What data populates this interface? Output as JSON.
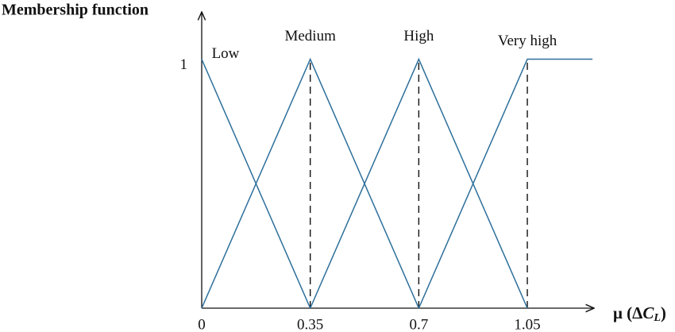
{
  "chart_data": {
    "type": "line",
    "title": "Membership function",
    "x_label": [
      "μ (Δ",
      "C",
      "L",
      ")"
    ],
    "xlim": [
      0,
      1.265
    ],
    "ylim": [
      0,
      1.19
    ],
    "xticks": [
      0,
      0.35,
      0.7,
      1.05
    ],
    "yticks": [
      1
    ],
    "guides": [
      0.35,
      0.7,
      1.05
    ],
    "color": "#2e6f9a",
    "series": [
      {
        "name": "Low",
        "x": [
          0,
          0.35
        ],
        "values": [
          1,
          0
        ]
      },
      {
        "name": "Medium",
        "x": [
          0,
          0.35,
          0.7
        ],
        "values": [
          0,
          1,
          0
        ]
      },
      {
        "name": "High",
        "x": [
          0.35,
          0.7,
          1.05
        ],
        "values": [
          0,
          1,
          0
        ]
      },
      {
        "name": "Very high",
        "x": [
          0.7,
          1.05,
          1.26
        ],
        "values": [
          0,
          1,
          1
        ]
      }
    ]
  }
}
